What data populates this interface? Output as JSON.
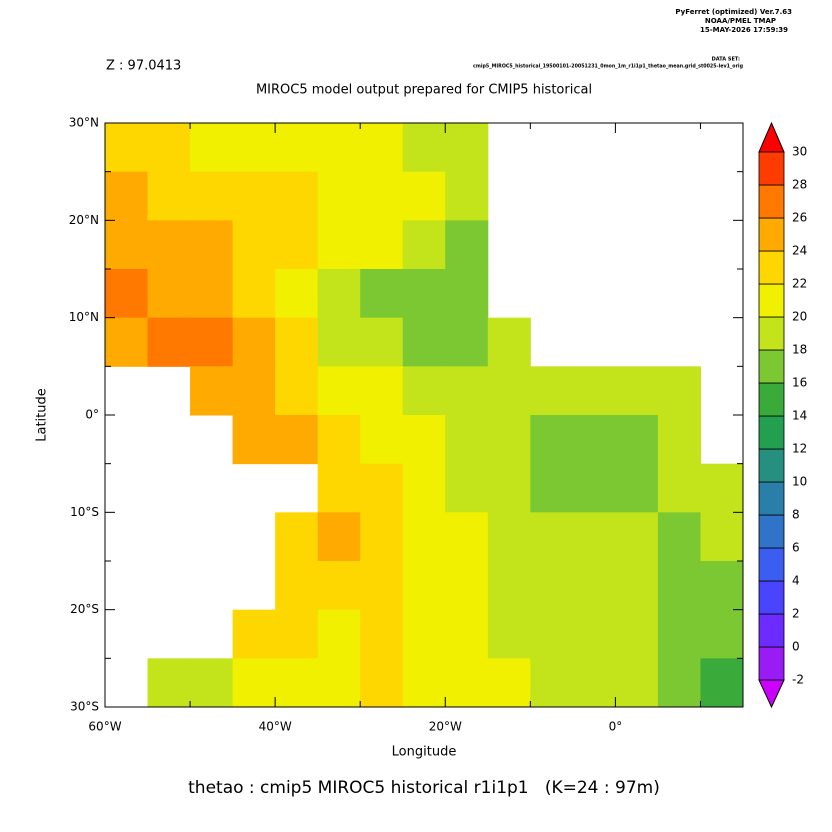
{
  "chart_data": {
    "type": "heatmap",
    "header": [
      "PyFerret (optimized) Ver.7.63",
      "NOAA/PMEL TMAP",
      "15-MAY-2026 17:59:39"
    ],
    "dataset_label": "DATA SET:",
    "dataset": "cmip5_MIROC5_historical_19500101-20051231_0mon_1m_r1i1p1_thetao_mean.grid_st0025-lev1_orig",
    "z_label": "Z : 97.0413",
    "title": "MIROC5 model output prepared for CMIP5 historical",
    "xlabel": "Longitude",
    "ylabel": "Latitude",
    "footer": "thetao : cmip5 MIROC5 historical r1i1p1   (K=24 : 97m)",
    "xlim": [
      -60,
      15
    ],
    "ylim": [
      -30,
      30
    ],
    "xticks": [
      {
        "value": -60,
        "label": "60°W"
      },
      {
        "value": -40,
        "label": "40°W"
      },
      {
        "value": -20,
        "label": "20°W"
      },
      {
        "value": 0,
        "label": "0°"
      }
    ],
    "xminorticks": [
      -50,
      -30,
      -10,
      10
    ],
    "yticks": [
      {
        "value": 30,
        "label": "30°N"
      },
      {
        "value": 20,
        "label": "20°N"
      },
      {
        "value": 10,
        "label": "10°N"
      },
      {
        "value": 0,
        "label": "0°"
      },
      {
        "value": -10,
        "label": "10°S"
      },
      {
        "value": -20,
        "label": "20°S"
      },
      {
        "value": -30,
        "label": "30°S"
      }
    ],
    "yminorticks": [
      25,
      15,
      5,
      -5,
      -15,
      -25
    ],
    "x": [
      -57.5,
      -52.5,
      -47.5,
      -42.5,
      -37.5,
      -32.5,
      -27.5,
      -22.5,
      -17.5,
      -12.5,
      -7.5,
      -2.5,
      2.5,
      7.5,
      12.5
    ],
    "y": [
      27.5,
      22.5,
      17.5,
      12.5,
      7.5,
      2.5,
      -2.5,
      -7.5,
      -12.5,
      -17.5,
      -22.5,
      -27.5
    ],
    "z": [
      [
        22,
        22,
        21,
        21,
        21,
        20,
        20,
        19,
        19,
        null,
        null,
        null,
        null,
        null,
        null
      ],
      [
        24,
        23,
        23,
        22,
        22,
        21,
        21,
        20,
        19,
        null,
        null,
        null,
        null,
        null,
        null
      ],
      [
        25,
        25,
        24,
        23,
        22,
        21,
        20,
        18,
        17,
        null,
        null,
        null,
        null,
        null,
        null
      ],
      [
        26,
        25,
        24,
        23,
        21,
        19,
        17,
        17,
        17,
        null,
        null,
        null,
        null,
        null,
        null
      ],
      [
        25,
        26,
        26,
        24,
        22,
        19,
        18,
        17,
        17,
        18,
        null,
        null,
        null,
        null,
        null
      ],
      [
        null,
        null,
        25,
        25,
        23,
        21,
        20,
        19,
        18,
        18,
        18,
        18,
        18,
        18,
        null
      ],
      [
        null,
        null,
        null,
        24,
        24,
        22,
        20,
        20,
        19,
        18,
        17,
        17,
        17,
        18,
        null
      ],
      [
        null,
        null,
        null,
        null,
        null,
        23,
        22,
        20,
        19,
        18,
        17,
        17,
        17,
        18,
        18
      ],
      [
        null,
        null,
        null,
        null,
        22,
        24,
        23,
        21,
        20,
        19,
        18,
        18,
        18,
        17,
        18
      ],
      [
        null,
        null,
        null,
        null,
        22,
        23,
        22,
        21,
        20,
        19,
        19,
        18,
        18,
        17,
        17
      ],
      [
        null,
        null,
        null,
        22,
        22,
        21,
        22,
        21,
        20,
        19,
        19,
        19,
        18,
        17,
        16
      ],
      [
        null,
        19,
        18,
        21,
        21,
        21,
        22,
        21,
        20,
        20,
        19,
        19,
        18,
        17,
        15
      ]
    ],
    "levels": [
      -2,
      0,
      2,
      4,
      6,
      8,
      10,
      12,
      14,
      16,
      18,
      20,
      22,
      24,
      26,
      28,
      30
    ],
    "colors": [
      "#cc00ff",
      "#9a1cf5",
      "#6c2cff",
      "#4b44ff",
      "#3c5ef0",
      "#2f74c8",
      "#2a7fa8",
      "#258f80",
      "#22a050",
      "#3aab3a",
      "#7cc832",
      "#c3e31a",
      "#f0f000",
      "#ffd700",
      "#ffaa00",
      "#ff7800",
      "#ff3c00",
      "#ff0000"
    ]
  }
}
